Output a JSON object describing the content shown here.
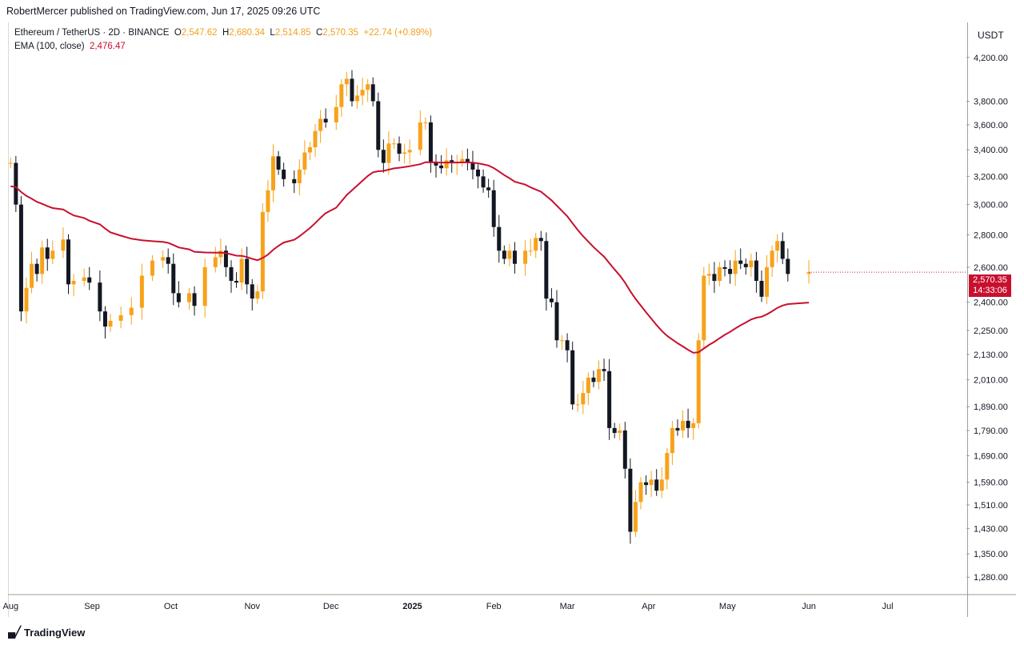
{
  "header": {
    "text": "RobertMercer published on TradingView.com, Jun 17, 2025 09:26 UTC"
  },
  "legend": {
    "symbol": "Ethereum / TetherUS · 2D · BINANCE",
    "o_label": "O",
    "o_value": "2,547.62",
    "h_label": "H",
    "h_value": "2,680.34",
    "l_label": "L",
    "l_value": "2,514.85",
    "c_label": "C",
    "c_value": "2,570.35",
    "change": "+22.74 (+0.89%)",
    "ema_label": "EMA (100, close)",
    "ema_value": "2,476.47"
  },
  "axis": {
    "currency": "USDT"
  },
  "price_badge": {
    "price": "2,570.35",
    "countdown": "14:33:06"
  },
  "footer": {
    "brand": "TradingView",
    "logo_icon": "tradingview-logo-icon"
  },
  "colors": {
    "up": "#f7a21b",
    "down": "#131722",
    "ema": "#c8102e",
    "badge": "#c8102e"
  },
  "chart_data": {
    "type": "candlestick",
    "interval": "2D",
    "scale": "log",
    "ylim": [
      1230,
      4550
    ],
    "y_ticks": [
      "4,200.00",
      "3,800.00",
      "3,600.00",
      "3,400.00",
      "3,200.00",
      "3,000.00",
      "2,800.00",
      "2,600.00",
      "2,400.00",
      "2,250.00",
      "2,130.00",
      "2,010.00",
      "1,890.00",
      "1,790.00",
      "1,690.00",
      "1,590.00",
      "1,510.00",
      "1,430.00",
      "1,350.00",
      "1,280.00"
    ],
    "y_tick_values": [
      4200,
      3800,
      3600,
      3400,
      3200,
      3000,
      2800,
      2600,
      2400,
      2250,
      2130,
      2010,
      1890,
      1790,
      1690,
      1590,
      1510,
      1430,
      1350,
      1280
    ],
    "x_ticks": [
      {
        "label": "Aug",
        "date": "2024-08-01"
      },
      {
        "label": "Sep",
        "date": "2024-09-01"
      },
      {
        "label": "Oct",
        "date": "2024-10-01"
      },
      {
        "label": "Nov",
        "date": "2024-11-01"
      },
      {
        "label": "Dec",
        "date": "2024-12-01"
      },
      {
        "label": "2025",
        "date": "2025-01-01",
        "bold": true
      },
      {
        "label": "Feb",
        "date": "2025-02-01"
      },
      {
        "label": "Mar",
        "date": "2025-03-01"
      },
      {
        "label": "Apr",
        "date": "2025-04-01"
      },
      {
        "label": "May",
        "date": "2025-05-01"
      },
      {
        "label": "Jun",
        "date": "2025-06-01"
      },
      {
        "label": "Jul",
        "date": "2025-07-01"
      }
    ],
    "xlim": [
      "2024-07-31",
      "2025-07-31"
    ],
    "anchors": [
      [
        "2024-08-01",
        3300,
        3300
      ],
      [
        "2024-08-03",
        2900,
        3000
      ],
      [
        "2024-08-05",
        2500,
        2350
      ],
      [
        "2024-08-07",
        2450,
        2480
      ],
      [
        "2024-08-09",
        2600,
        2620
      ],
      [
        "2024-08-11",
        2650,
        2560
      ],
      [
        "2024-08-13",
        2650,
        2720
      ],
      [
        "2024-08-15",
        2600,
        2650
      ],
      [
        "2024-08-17",
        2640,
        2700
      ],
      [
        "2024-08-21",
        2700,
        2770
      ],
      [
        "2024-08-23",
        2770,
        2500
      ],
      [
        "2024-08-25",
        2550,
        2520
      ],
      [
        "2024-08-29",
        2510,
        2540
      ],
      [
        "2024-08-31",
        2470,
        2510
      ],
      [
        "2024-09-04",
        2400,
        2350
      ],
      [
        "2024-09-06",
        2300,
        2270
      ],
      [
        "2024-09-08",
        2280,
        2300
      ],
      [
        "2024-09-12",
        2380,
        2330
      ],
      [
        "2024-09-16",
        2350,
        2370
      ],
      [
        "2024-09-20",
        2500,
        2550
      ],
      [
        "2024-09-24",
        2620,
        2640
      ],
      [
        "2024-09-28",
        2650,
        2660
      ],
      [
        "2024-09-30",
        2650,
        2620
      ],
      [
        "2024-10-02",
        2500,
        2450
      ],
      [
        "2024-10-04",
        2400,
        2400
      ],
      [
        "2024-10-08",
        2450,
        2450
      ],
      [
        "2024-10-10",
        2400,
        2380
      ],
      [
        "2024-10-14",
        2450,
        2600
      ],
      [
        "2024-10-18",
        2650,
        2660
      ],
      [
        "2024-10-20",
        2700,
        2700
      ],
      [
        "2024-10-22",
        2700,
        2600
      ],
      [
        "2024-10-24",
        2550,
        2520
      ],
      [
        "2024-10-26",
        2550,
        2510
      ],
      [
        "2024-10-28",
        2600,
        2650
      ],
      [
        "2024-10-30",
        2600,
        2500
      ],
      [
        "2024-11-01",
        2420,
        2420
      ],
      [
        "2024-11-03",
        2500,
        2460
      ],
      [
        "2024-11-05",
        2900,
        2950
      ],
      [
        "2024-11-07",
        3100,
        3100
      ],
      [
        "2024-11-09",
        3400,
        3350
      ],
      [
        "2024-11-11",
        3300,
        3250
      ],
      [
        "2024-11-13",
        3250,
        3180
      ],
      [
        "2024-11-17",
        3100,
        3150
      ],
      [
        "2024-11-19",
        3200,
        3250
      ],
      [
        "2024-11-21",
        3350,
        3380
      ],
      [
        "2024-11-23",
        3380,
        3420
      ],
      [
        "2024-11-25",
        3500,
        3550
      ],
      [
        "2024-11-27",
        3650,
        3650
      ],
      [
        "2024-11-29",
        3650,
        3620
      ],
      [
        "2024-12-03",
        3700,
        3750
      ],
      [
        "2024-12-05",
        3900,
        3950
      ],
      [
        "2024-12-07",
        4000,
        4000
      ],
      [
        "2024-12-09",
        3900,
        3800
      ],
      [
        "2024-12-11",
        3850,
        3850
      ],
      [
        "2024-12-13",
        3950,
        3900
      ],
      [
        "2024-12-15",
        3930,
        3950
      ],
      [
        "2024-12-17",
        3900,
        3800
      ],
      [
        "2024-12-19",
        3500,
        3400
      ],
      [
        "2024-12-21",
        3350,
        3300
      ],
      [
        "2024-12-23",
        3400,
        3450
      ],
      [
        "2024-12-25",
        3500,
        3450
      ],
      [
        "2024-12-27",
        3400,
        3370
      ],
      [
        "2024-12-29",
        3360,
        3380
      ],
      [
        "2024-12-31",
        3400,
        3400
      ],
      [
        "2025-01-04",
        3600,
        3620
      ],
      [
        "2025-01-06",
        3650,
        3620
      ],
      [
        "2025-01-08",
        3400,
        3300
      ],
      [
        "2025-01-10",
        3300,
        3280
      ],
      [
        "2025-01-12",
        3250,
        3260
      ],
      [
        "2025-01-14",
        3300,
        3320
      ],
      [
        "2025-01-16",
        3330,
        3300
      ],
      [
        "2025-01-18",
        3280,
        3310
      ],
      [
        "2025-01-20",
        3320,
        3330
      ],
      [
        "2025-01-22",
        3340,
        3300
      ],
      [
        "2025-01-24",
        3280,
        3250
      ],
      [
        "2025-01-26",
        3280,
        3200
      ],
      [
        "2025-01-28",
        3200,
        3120
      ],
      [
        "2025-01-30",
        3150,
        3100
      ],
      [
        "2025-02-01",
        3050,
        2850
      ],
      [
        "2025-02-03",
        2700,
        2700
      ],
      [
        "2025-02-05",
        2650,
        2650
      ],
      [
        "2025-02-07",
        2680,
        2700
      ],
      [
        "2025-02-09",
        2650,
        2620
      ],
      [
        "2025-02-13",
        2680,
        2700
      ],
      [
        "2025-02-15",
        2720,
        2700
      ],
      [
        "2025-02-17",
        2740,
        2780
      ],
      [
        "2025-02-19",
        2800,
        2760
      ],
      [
        "2025-02-21",
        2650,
        2420
      ],
      [
        "2025-02-23",
        2420,
        2400
      ],
      [
        "2025-02-25",
        2300,
        2200
      ],
      [
        "2025-02-27",
        2150,
        2200
      ],
      [
        "2025-03-01",
        2250,
        2150
      ],
      [
        "2025-03-03",
        2050,
        1900
      ],
      [
        "2025-03-05",
        1950,
        1900
      ],
      [
        "2025-03-07",
        1930,
        1950
      ],
      [
        "2025-03-09",
        1980,
        2020
      ],
      [
        "2025-03-11",
        2030,
        2000
      ],
      [
        "2025-03-13",
        2050,
        2060
      ],
      [
        "2025-03-15",
        2060,
        2050
      ],
      [
        "2025-03-17",
        1950,
        1800
      ],
      [
        "2025-03-19",
        1800,
        1780
      ],
      [
        "2025-03-21",
        1790,
        1790
      ],
      [
        "2025-03-23",
        1780,
        1640
      ],
      [
        "2025-03-25",
        1600,
        1420
      ],
      [
        "2025-03-27",
        1450,
        1520
      ],
      [
        "2025-03-29",
        1560,
        1590
      ],
      [
        "2025-03-31",
        1600,
        1580
      ],
      [
        "2025-04-02",
        1590,
        1600
      ],
      [
        "2025-04-04",
        1600,
        1560
      ],
      [
        "2025-04-06",
        1580,
        1600
      ],
      [
        "2025-04-08",
        1650,
        1700
      ],
      [
        "2025-04-10",
        1750,
        1800
      ],
      [
        "2025-04-12",
        1800,
        1790
      ],
      [
        "2025-04-14",
        1820,
        1830
      ],
      [
        "2025-04-16",
        1810,
        1800
      ],
      [
        "2025-04-18",
        1800,
        1820
      ],
      [
        "2025-04-20",
        2180,
        2200
      ],
      [
        "2025-04-22",
        2400,
        2550
      ],
      [
        "2025-04-24",
        2600,
        2560
      ],
      [
        "2025-04-26",
        2580,
        2520
      ],
      [
        "2025-04-28",
        2500,
        2600
      ],
      [
        "2025-04-30",
        2620,
        2590
      ],
      [
        "2025-05-02",
        2520,
        2560
      ],
      [
        "2025-05-04",
        2600,
        2640
      ],
      [
        "2025-05-06",
        2650,
        2620
      ],
      [
        "2025-05-08",
        2580,
        2600
      ],
      [
        "2025-05-10",
        2610,
        2640
      ],
      [
        "2025-05-12",
        2600,
        2520
      ],
      [
        "2025-05-14",
        2450,
        2430
      ],
      [
        "2025-05-16",
        2450,
        2600
      ],
      [
        "2025-05-18",
        2650,
        2700
      ],
      [
        "2025-05-20",
        2750,
        2760
      ],
      [
        "2025-05-22",
        2780,
        2650
      ],
      [
        "2025-05-24",
        2600,
        2560
      ],
      [
        "2025-06-01",
        2547.62,
        2570.35
      ]
    ]
  }
}
